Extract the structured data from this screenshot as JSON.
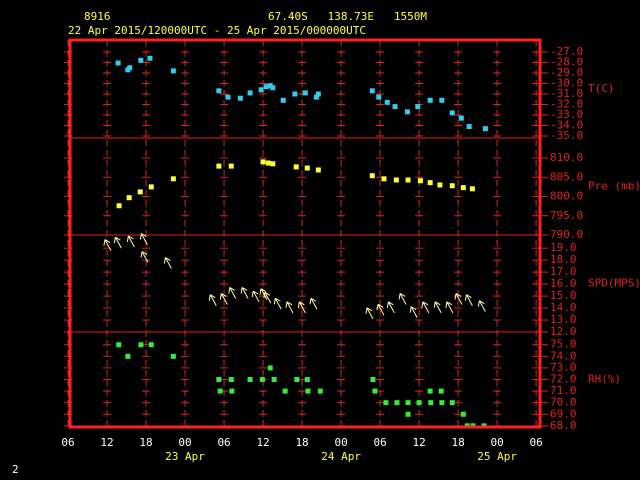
{
  "header": {
    "station": "8916",
    "location": "67.40S   138.73E   1550M",
    "period": "22 Apr 2015/120000UTC - 25 Apr 2015/000000UTC",
    "page": "2"
  },
  "chart_data": [
    {
      "type": "scatter",
      "marker": "square",
      "color": "#33ccee",
      "ylabel": "T(C)",
      "xlim": [
        6.3,
        78.6
      ],
      "ylim": [
        -35.19,
        -25.86
      ],
      "yticks": [
        {
          "value": -27,
          "label": "-27.0"
        },
        {
          "value": -28,
          "label": "-28.0"
        },
        {
          "value": -29,
          "label": "-29.0"
        },
        {
          "value": -30,
          "label": "-30.0"
        },
        {
          "value": -31,
          "label": "-31.0"
        },
        {
          "value": -32,
          "label": "-32.0"
        },
        {
          "value": -33,
          "label": "-33.0"
        },
        {
          "value": -34,
          "label": "-34.0"
        },
        {
          "value": -35,
          "label": "-35.0"
        }
      ],
      "x": [
        13.7,
        15.2,
        15.5,
        17.2,
        18.6,
        22.2,
        29.2,
        30.6,
        32.5,
        34.0,
        35.7,
        36.5,
        37.1,
        37.5,
        39.1,
        40.9,
        42.5,
        44.2,
        44.5,
        52.8,
        53.8,
        55.1,
        56.3,
        58.2,
        59.8,
        61.7,
        63.5,
        65.1,
        66.5,
        67.7,
        70.2
      ],
      "values": [
        -28.05,
        -28.7,
        -28.5,
        -27.8,
        -27.6,
        -28.8,
        -30.7,
        -31.3,
        -31.4,
        -30.9,
        -30.6,
        -30.3,
        -30.2,
        -30.4,
        -31.6,
        -31.0,
        -30.9,
        -31.3,
        -31.0,
        -30.7,
        -31.3,
        -31.8,
        -32.2,
        -32.7,
        -32.2,
        -31.6,
        -31.6,
        -32.8,
        -33.3,
        -34.1,
        -34.3
      ]
    },
    {
      "type": "scatter",
      "marker": "square",
      "color": "#ffff33",
      "ylabel": "Pre (mb)",
      "xlim": [
        6.3,
        78.6
      ],
      "ylim": [
        790,
        815.2
      ],
      "yticks": [
        {
          "value": 810,
          "label": "810.0"
        },
        {
          "value": 805,
          "label": "805.0"
        },
        {
          "value": 800,
          "label": "800.0"
        },
        {
          "value": 795,
          "label": "795.0"
        },
        {
          "value": 790,
          "label": "790.0"
        }
      ],
      "x": [
        13.85,
        15.4,
        17.1,
        18.8,
        22.2,
        29.2,
        31.1,
        36.0,
        36.8,
        37.5,
        41.1,
        42.8,
        44.5,
        52.8,
        54.6,
        56.5,
        58.3,
        60.2,
        61.7,
        63.2,
        65.1,
        66.8,
        68.2
      ],
      "values": [
        797.6,
        799.7,
        801.2,
        802.5,
        804.6,
        807.9,
        807.9,
        809.0,
        808.7,
        808.5,
        807.7,
        807.4,
        806.9,
        805.4,
        804.6,
        804.3,
        804.3,
        804.1,
        803.6,
        803.0,
        802.8,
        802.3,
        802.0
      ]
    },
    {
      "type": "scatter",
      "marker": "arrow",
      "color": "#ffffaa",
      "ylabel": "SPD(MPS)",
      "xlim": [
        6.3,
        78.6
      ],
      "ylim": [
        12,
        20.1
      ],
      "yticks": [
        {
          "value": 19,
          "label": "19.0"
        },
        {
          "value": 18,
          "label": "18.0"
        },
        {
          "value": 17,
          "label": "17.0"
        },
        {
          "value": 16,
          "label": "16.0"
        },
        {
          "value": 15,
          "label": "15.0"
        },
        {
          "value": 14,
          "label": "14.0"
        },
        {
          "value": 13,
          "label": "13.0"
        },
        {
          "value": 12,
          "label": "12.0"
        }
      ],
      "x": [
        12.6,
        14.2,
        16.2,
        18.2,
        18.3,
        21.9,
        28.8,
        30.5,
        31.8,
        33.7,
        35.4,
        36.6,
        37.2,
        38.8,
        40.6,
        42.5,
        44.3,
        52.9,
        54.6,
        56.2,
        58.0,
        59.7,
        61.5,
        63.4,
        65.2,
        66.6,
        68.2,
        70.2
      ],
      "values": [
        18.8,
        19.0,
        19.1,
        19.3,
        17.8,
        17.3,
        14.2,
        14.3,
        14.8,
        14.8,
        14.5,
        14.7,
        14.4,
        13.9,
        13.6,
        13.6,
        13.9,
        13.1,
        13.4,
        13.6,
        14.3,
        13.2,
        13.6,
        13.6,
        13.6,
        14.3,
        14.2,
        13.7
      ]
    },
    {
      "type": "scatter",
      "marker": "square",
      "color": "#33ee33",
      "ylabel": "RH(%)",
      "xlim": [
        6.3,
        78.6
      ],
      "ylim": [
        67.9,
        76.1
      ],
      "yticks": [
        {
          "value": 75,
          "label": "75.0"
        },
        {
          "value": 74,
          "label": "74.0"
        },
        {
          "value": 73,
          "label": "73.0"
        },
        {
          "value": 72,
          "label": "72.0"
        },
        {
          "value": 71,
          "label": "71.0"
        },
        {
          "value": 70,
          "label": "70.0"
        },
        {
          "value": 69,
          "label": "69.0"
        },
        {
          "value": 68,
          "label": "68.0"
        }
      ],
      "x": [
        13.8,
        15.2,
        17.2,
        18.8,
        22.2,
        29.2,
        29.4,
        31.1,
        31.2,
        34.0,
        35.9,
        37.1,
        37.7,
        39.4,
        41.2,
        42.8,
        42.9,
        44.8,
        52.9,
        53.2,
        54.9,
        56.6,
        58.3,
        58.3,
        60.0,
        61.7,
        61.8,
        63.4,
        63.5,
        65.1,
        66.8,
        67.4,
        68.3,
        70.0
      ],
      "values": [
        75,
        74,
        75,
        75,
        74,
        72,
        71,
        72,
        71,
        72,
        72,
        73,
        72,
        71,
        72,
        72,
        71,
        71,
        72,
        71,
        70,
        70,
        70,
        69,
        70,
        71,
        70,
        71,
        70,
        70,
        69,
        68,
        68,
        68
      ],
      "xticks": [
        {
          "value": 6,
          "label": "06"
        },
        12,
        18,
        {
          "value": 24,
          "label": "00"
        },
        {
          "value": 30,
          "label": "06"
        },
        {
          "value": 36,
          "label": "12"
        },
        {
          "value": 42,
          "label": "18"
        },
        {
          "value": 48,
          "label": "00"
        },
        {
          "value": 54,
          "label": "06"
        },
        {
          "value": 60,
          "label": "12"
        },
        {
          "value": 66,
          "label": "18"
        },
        {
          "value": 72,
          "label": "00"
        },
        {
          "value": 78,
          "label": "06"
        }
      ],
      "annotations": [
        {
          "x": 24,
          "text": "23 Apr"
        },
        {
          "x": 48,
          "text": "24 Apr"
        },
        {
          "x": 72,
          "text": "25 Apr"
        }
      ]
    }
  ]
}
